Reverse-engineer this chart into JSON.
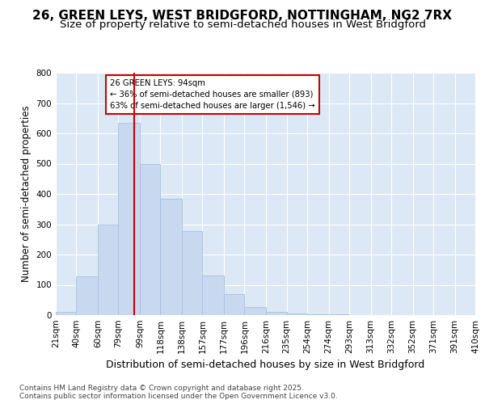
{
  "title_line1": "26, GREEN LEYS, WEST BRIDGFORD, NOTTINGHAM, NG2 7RX",
  "title_line2": "Size of property relative to semi-detached houses in West Bridgford",
  "xlabel": "Distribution of semi-detached houses by size in West Bridgford",
  "ylabel": "Number of semi-detached properties",
  "footnote1": "Contains HM Land Registry data © Crown copyright and database right 2025.",
  "footnote2": "Contains public sector information licensed under the Open Government Licence v3.0.",
  "bar_edges": [
    21,
    40,
    60,
    79,
    99,
    118,
    138,
    157,
    177,
    196,
    216,
    235,
    254,
    274,
    293,
    313,
    332,
    352,
    371,
    391,
    410
  ],
  "bar_heights": [
    10,
    128,
    300,
    635,
    500,
    385,
    278,
    130,
    70,
    28,
    12,
    5,
    3,
    2,
    0,
    0,
    0,
    0,
    0,
    0
  ],
  "bar_color": "#c8d8ef",
  "bar_edgecolor": "#a8c0e0",
  "vline_x": 94,
  "vline_color": "#cc0000",
  "annotation_text": "26 GREEN LEYS: 94sqm\n← 36% of semi-detached houses are smaller (893)\n63% of semi-detached houses are larger (1,546) →",
  "annotation_box_edgecolor": "#cc0000",
  "ylim": [
    0,
    800
  ],
  "yticks": [
    0,
    100,
    200,
    300,
    400,
    500,
    600,
    700,
    800
  ],
  "fig_bg_color": "#ffffff",
  "plot_bg_color": "#dce8f5",
  "grid_color": "#ffffff",
  "title_fontsize": 11,
  "subtitle_fontsize": 9.5,
  "axis_label_fontsize": 9,
  "ylabel_fontsize": 8.5,
  "tick_fontsize": 7.5,
  "footnote_fontsize": 6.5
}
